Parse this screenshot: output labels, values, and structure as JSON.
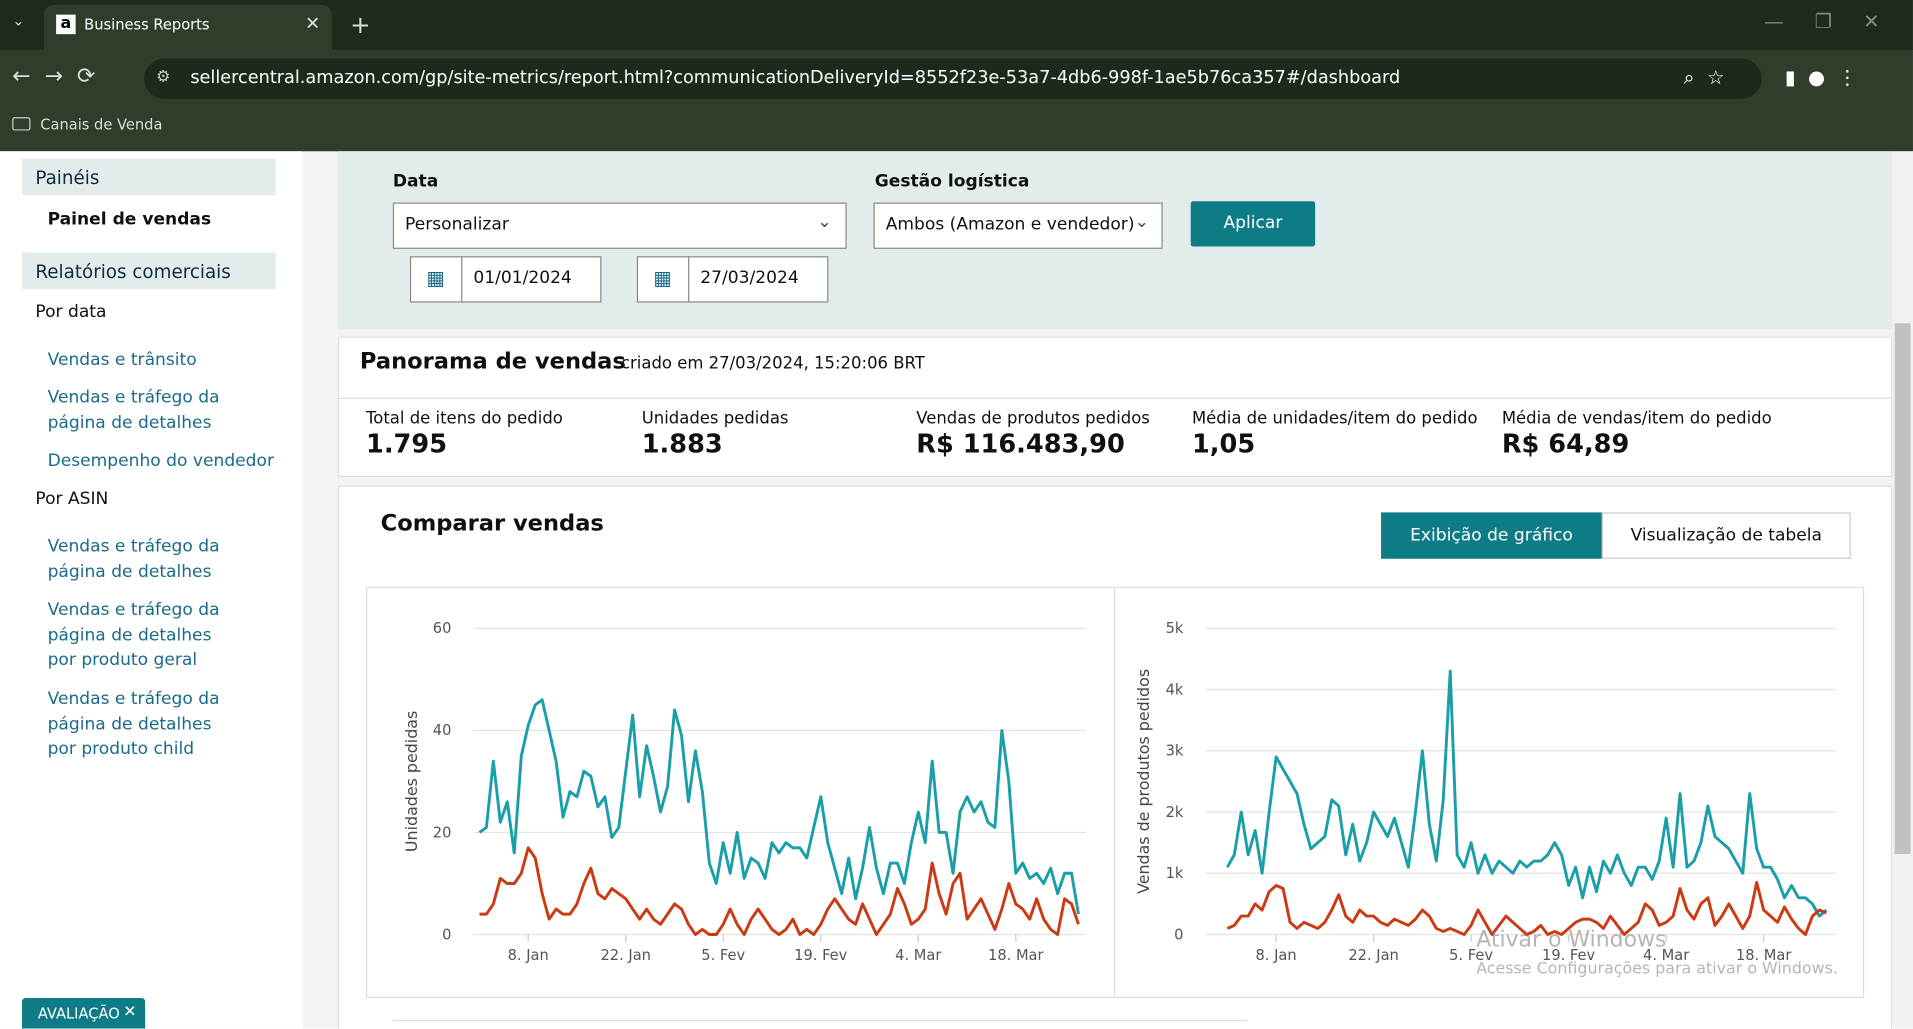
{
  "browser": {
    "tab_title": "Business Reports",
    "url": "sellercentral.amazon.com/gp/site-metrics/report.html?communicationDeliveryId=8552f23e-53a7-4db6-998f-1ae5b76ca357#/dashboard",
    "bookmark": "Canais de Venda"
  },
  "sidebar": {
    "paineis": "Painéis",
    "painel_vendas": "Painel de vendas",
    "relatorios": "Relatórios comerciais",
    "por_data": "Por data",
    "por_data_links": [
      "Vendas e trânsito",
      "Vendas e tráfego da página de detalhes",
      "Desempenho do vendedor"
    ],
    "por_asin": "Por ASIN",
    "por_asin_links": [
      "Vendas e tráfego da página de detalhes",
      "Vendas e tráfego da página de detalhes por produto geral",
      "Vendas e tráfego da página de detalhes por produto child"
    ]
  },
  "filters": {
    "date_label": "Data",
    "date_select": "Personalizar",
    "start": "01/01/2024",
    "end": "27/03/2024",
    "logistics_label": "Gestão logística",
    "logistics_select": "Ambos (Amazon e vendedor)",
    "apply": "Aplicar"
  },
  "overview": {
    "title": "Panorama de vendas",
    "created": "criado em 27/03/2024, 15:20:06 BRT",
    "metrics": [
      {
        "label": "Total de itens do pedido",
        "value": "1.795"
      },
      {
        "label": "Unidades pedidas",
        "value": "1.883"
      },
      {
        "label": "Vendas de produtos pedidos",
        "value": "R$ 116.483,90"
      },
      {
        "label": "Média de unidades/item do pedido",
        "value": "1,05"
      },
      {
        "label": "Média de vendas/item do pedido",
        "value": "R$ 64,89"
      }
    ]
  },
  "compare": {
    "title": "Comparar vendas",
    "tabs": [
      "Exibição de gráfico",
      "Visualização de tabela"
    ]
  },
  "chart_data": [
    {
      "type": "line",
      "y_label": "Unidades pedidas",
      "x": [
        1,
        2,
        3,
        4,
        5,
        6,
        7,
        8,
        9,
        10,
        11,
        12,
        13,
        14,
        15,
        16,
        17,
        18,
        19,
        20,
        21,
        22,
        23,
        24,
        25,
        26,
        27,
        28,
        29,
        30,
        31,
        32,
        33,
        34,
        35,
        36,
        37,
        38,
        39,
        40,
        41,
        42,
        43,
        44,
        45,
        46,
        47,
        48,
        49,
        50,
        51,
        52,
        53,
        54,
        55,
        56,
        57,
        58,
        59,
        60,
        61,
        62,
        63,
        64,
        65,
        66,
        67,
        68,
        69,
        70,
        71,
        72,
        73,
        74,
        75,
        76,
        77,
        78,
        79,
        80,
        81,
        82,
        83,
        84,
        85,
        86,
        87
      ],
      "xlim": [
        1,
        87
      ],
      "xticks": [
        {
          "value": 8,
          "label": "8. Jan"
        },
        {
          "value": 22,
          "label": "22. Jan"
        },
        {
          "value": 36,
          "label": "5. Fev"
        },
        {
          "value": 50,
          "label": "19. Fev"
        },
        {
          "value": 64,
          "label": "4. Mar"
        },
        {
          "value": 78,
          "label": "18. Mar"
        }
      ],
      "ylim": [
        0,
        60
      ],
      "yticks": [
        0,
        20,
        40,
        60
      ],
      "grid": true,
      "series": [
        {
          "color": "#1a9fa9",
          "values": [
            20,
            21,
            34,
            22,
            26,
            16,
            35,
            41,
            45,
            46,
            40,
            34,
            23,
            28,
            27,
            32,
            31,
            25,
            27,
            19,
            21,
            32,
            43,
            27,
            37,
            31,
            24,
            29,
            44,
            39,
            26,
            36,
            28,
            14,
            10,
            18,
            12,
            20,
            11,
            15,
            14,
            11,
            18,
            16,
            18,
            17,
            17,
            15,
            21,
            27,
            18,
            13,
            8,
            15,
            7,
            13,
            21,
            13,
            8,
            14,
            14,
            10,
            18,
            24,
            18,
            34,
            20,
            20,
            12,
            24,
            27,
            24,
            26,
            22,
            21,
            40,
            30,
            12,
            14,
            11,
            12,
            10,
            13,
            8,
            12,
            12,
            4
          ]
        },
        {
          "color": "#cc3a13",
          "values": [
            4,
            4,
            6,
            11,
            10,
            10,
            12,
            17,
            15,
            8,
            3,
            5,
            4,
            4,
            6,
            10,
            13,
            8,
            7,
            9,
            8,
            7,
            5,
            3,
            5,
            3,
            2,
            4,
            6,
            5,
            2,
            0,
            1,
            0,
            0,
            2,
            5,
            2,
            0,
            3,
            5,
            3,
            1,
            0,
            1,
            3,
            0,
            1,
            0,
            2,
            5,
            7,
            5,
            3,
            2,
            6,
            3,
            0,
            2,
            4,
            9,
            6,
            2,
            3,
            5,
            14,
            8,
            4,
            10,
            12,
            3,
            5,
            7,
            4,
            1,
            5,
            10,
            6,
            5,
            3,
            7,
            3,
            1,
            0,
            7,
            6,
            2
          ]
        }
      ]
    },
    {
      "type": "line",
      "y_label": "Vendas de produtos pedidos",
      "x": [
        1,
        2,
        3,
        4,
        5,
        6,
        7,
        8,
        9,
        10,
        11,
        12,
        13,
        14,
        15,
        16,
        17,
        18,
        19,
        20,
        21,
        22,
        23,
        24,
        25,
        26,
        27,
        28,
        29,
        30,
        31,
        32,
        33,
        34,
        35,
        36,
        37,
        38,
        39,
        40,
        41,
        42,
        43,
        44,
        45,
        46,
        47,
        48,
        49,
        50,
        51,
        52,
        53,
        54,
        55,
        56,
        57,
        58,
        59,
        60,
        61,
        62,
        63,
        64,
        65,
        66,
        67,
        68,
        69,
        70,
        71,
        72,
        73,
        74,
        75,
        76,
        77,
        78,
        79,
        80,
        81,
        82,
        83,
        84,
        85,
        86,
        87
      ],
      "xlim": [
        1,
        87
      ],
      "xticks": [
        {
          "value": 8,
          "label": "8. Jan"
        },
        {
          "value": 22,
          "label": "22. Jan"
        },
        {
          "value": 36,
          "label": "5. Fev"
        },
        {
          "value": 50,
          "label": "19. Fev"
        },
        {
          "value": 64,
          "label": "4. Mar"
        },
        {
          "value": 78,
          "label": "18. Mar"
        }
      ],
      "ylim": [
        0,
        5000
      ],
      "yticks": [
        0,
        {
          "value": 1000,
          "label": "1k"
        },
        {
          "value": 2000,
          "label": "2k"
        },
        {
          "value": 3000,
          "label": "3k"
        },
        {
          "value": 4000,
          "label": "4k"
        },
        {
          "value": 5000,
          "label": "5k"
        }
      ],
      "grid": true,
      "series": [
        {
          "color": "#1a9fa9",
          "values": [
            1100,
            1300,
            2000,
            1300,
            1700,
            1000,
            2000,
            2900,
            2700,
            2500,
            2300,
            1800,
            1400,
            1500,
            1600,
            2200,
            2100,
            1300,
            1800,
            1200,
            1500,
            2000,
            1800,
            1600,
            1900,
            1500,
            1100,
            2000,
            3000,
            1800,
            1200,
            2200,
            4300,
            1300,
            1100,
            1500,
            1000,
            1300,
            1000,
            1200,
            1100,
            1000,
            1200,
            1100,
            1200,
            1200,
            1300,
            1500,
            1300,
            800,
            1100,
            600,
            1100,
            700,
            1200,
            1000,
            1300,
            1000,
            800,
            1100,
            1100,
            900,
            1200,
            1900,
            1100,
            2300,
            1100,
            1200,
            1500,
            2100,
            1600,
            1500,
            1400,
            1200,
            1000,
            2300,
            1400,
            1100,
            1100,
            900,
            600,
            800,
            600,
            600,
            500,
            300,
            400
          ]
        },
        {
          "color": "#cc3a13",
          "values": [
            100,
            150,
            300,
            300,
            500,
            400,
            700,
            800,
            750,
            200,
            100,
            200,
            150,
            100,
            200,
            400,
            650,
            300,
            200,
            400,
            300,
            300,
            200,
            150,
            250,
            200,
            150,
            250,
            400,
            300,
            100,
            50,
            100,
            50,
            0,
            150,
            400,
            200,
            0,
            150,
            300,
            200,
            100,
            0,
            50,
            150,
            0,
            50,
            0,
            100,
            200,
            250,
            250,
            200,
            100,
            300,
            150,
            0,
            100,
            200,
            500,
            400,
            150,
            200,
            300,
            750,
            400,
            250,
            500,
            600,
            150,
            300,
            500,
            300,
            100,
            300,
            850,
            400,
            300,
            200,
            450,
            250,
            100,
            0,
            300,
            400,
            350
          ]
        }
      ]
    }
  ],
  "watermark": {
    "line1": "Ativar o Windows",
    "line2": "Acesse Configurações para ativar o Windows."
  },
  "badge": "AVALIAÇÃO"
}
